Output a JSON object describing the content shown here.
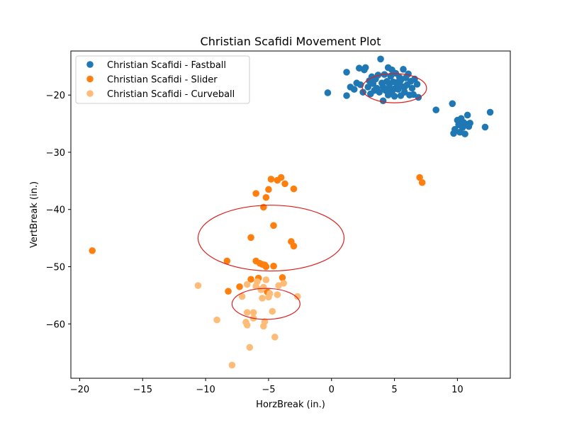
{
  "chart_data": {
    "type": "scatter",
    "title": "Christian Scafidi Movement Plot",
    "xlabel": "HorzBreak (in.)",
    "ylabel": "VertBreak (in.)",
    "xlim": [
      -20.7,
      14.2
    ],
    "ylim": [
      -69.5,
      -12.3
    ],
    "xticks": [
      -20,
      -15,
      -10,
      -5,
      0,
      5,
      10
    ],
    "xtick_labels": [
      "−20",
      "−15",
      "−10",
      "−5",
      "0",
      "5",
      "10"
    ],
    "yticks": [
      -60,
      -50,
      -40,
      -30,
      -20
    ],
    "ytick_labels": [
      "−60",
      "−50",
      "−40",
      "−30",
      "−20"
    ],
    "grid": false,
    "legend_position": "top-left",
    "series": [
      {
        "name": "Christian Scafidi - Fastball",
        "color": "#1f77b4",
        "points": [
          [
            -0.3,
            -19.6
          ],
          [
            1.2,
            -16.0
          ],
          [
            1.2,
            -20.1
          ],
          [
            1.5,
            -18.6
          ],
          [
            1.8,
            -19.0
          ],
          [
            2.0,
            -17.9
          ],
          [
            2.2,
            -15.3
          ],
          [
            2.3,
            -18.2
          ],
          [
            2.5,
            -19.5
          ],
          [
            2.6,
            -15.6
          ],
          [
            2.7,
            -15.2
          ],
          [
            2.9,
            -18.6
          ],
          [
            3.0,
            -17.5
          ],
          [
            3.1,
            -19.8
          ],
          [
            3.2,
            -16.8
          ],
          [
            3.3,
            -18.0
          ],
          [
            3.4,
            -19.2
          ],
          [
            3.5,
            -17.2
          ],
          [
            3.6,
            -18.8
          ],
          [
            3.7,
            -16.5
          ],
          [
            3.8,
            -19.5
          ],
          [
            3.9,
            -13.7
          ],
          [
            4.0,
            -17.9
          ],
          [
            4.1,
            -18.6
          ],
          [
            4.1,
            -21.0
          ],
          [
            4.2,
            -16.4
          ],
          [
            4.3,
            -19.2
          ],
          [
            4.4,
            -17.6
          ],
          [
            4.5,
            -20.0
          ],
          [
            4.5,
            -15.2
          ],
          [
            4.6,
            -18.1
          ],
          [
            4.7,
            -16.7
          ],
          [
            4.8,
            -19.4
          ],
          [
            4.8,
            -15.6
          ],
          [
            4.9,
            -17.7
          ],
          [
            5.0,
            -18.9
          ],
          [
            5.0,
            -20.2
          ],
          [
            5.1,
            -16.2
          ],
          [
            5.2,
            -17.8
          ],
          [
            5.3,
            -19.0
          ],
          [
            5.3,
            -18.3
          ],
          [
            5.4,
            -16.9
          ],
          [
            5.5,
            -20.1
          ],
          [
            5.5,
            -17.4
          ],
          [
            5.6,
            -18.5
          ],
          [
            5.7,
            -15.5
          ],
          [
            5.8,
            -19.5
          ],
          [
            5.9,
            -17.0
          ],
          [
            6.0,
            -18.2
          ],
          [
            6.1,
            -16.3
          ],
          [
            6.2,
            -20.0
          ],
          [
            6.3,
            -17.6
          ],
          [
            6.4,
            -18.8
          ],
          [
            6.5,
            -19.9
          ],
          [
            6.6,
            -17.2
          ],
          [
            6.8,
            -18.1
          ],
          [
            6.9,
            -20.4
          ],
          [
            5.2,
            -18.0
          ],
          [
            4.6,
            -18.7
          ],
          [
            5.8,
            -18.6
          ],
          [
            8.3,
            -22.6
          ],
          [
            9.6,
            -21.5
          ],
          [
            9.7,
            -26.7
          ],
          [
            9.8,
            -26.0
          ],
          [
            10.0,
            -24.4
          ],
          [
            10.1,
            -25.2
          ],
          [
            10.2,
            -26.5
          ],
          [
            10.3,
            -24.1
          ],
          [
            10.4,
            -25.7
          ],
          [
            10.5,
            -24.8
          ],
          [
            10.6,
            -26.8
          ],
          [
            10.7,
            -25.1
          ],
          [
            10.8,
            -23.5
          ],
          [
            10.9,
            -25.5
          ],
          [
            11.0,
            -24.9
          ],
          [
            12.2,
            -25.6
          ],
          [
            12.6,
            -23.0
          ]
        ]
      },
      {
        "name": "Christian Scafidi - Slider",
        "color": "#ff7f0e",
        "points": [
          [
            -19.0,
            -47.2
          ],
          [
            -8.3,
            -49.0
          ],
          [
            -8.2,
            -54.3
          ],
          [
            -7.3,
            -53.5
          ],
          [
            -6.4,
            -44.9
          ],
          [
            -6.4,
            -52.2
          ],
          [
            -6.0,
            -49.0
          ],
          [
            -6.0,
            -37.2
          ],
          [
            -5.8,
            -52.0
          ],
          [
            -5.7,
            -49.4
          ],
          [
            -5.6,
            -54.0
          ],
          [
            -5.5,
            -49.6
          ],
          [
            -5.4,
            -39.6
          ],
          [
            -5.3,
            -49.7
          ],
          [
            -5.2,
            -50.0
          ],
          [
            -5.2,
            -37.9
          ],
          [
            -5.1,
            -54.4
          ],
          [
            -5.0,
            -36.5
          ],
          [
            -4.8,
            -34.7
          ],
          [
            -4.6,
            -42.8
          ],
          [
            -4.6,
            -49.9
          ],
          [
            -4.3,
            -34.9
          ],
          [
            -4.0,
            -34.4
          ],
          [
            -3.9,
            -51.9
          ],
          [
            -3.7,
            -35.5
          ],
          [
            -3.2,
            -45.6
          ],
          [
            -3.0,
            -36.4
          ],
          [
            -3.0,
            -46.4
          ],
          [
            7.0,
            -34.4
          ],
          [
            7.2,
            -35.3
          ]
        ]
      },
      {
        "name": "Christian Scafidi - Curveball",
        "color": "#ffbb78",
        "points": [
          [
            -10.6,
            -53.3
          ],
          [
            -9.1,
            -59.3
          ],
          [
            -7.9,
            -67.2
          ],
          [
            -7.1,
            -55.2
          ],
          [
            -6.8,
            -59.7
          ],
          [
            -6.7,
            -53.1
          ],
          [
            -6.7,
            -60.2
          ],
          [
            -6.5,
            -64.1
          ],
          [
            -6.2,
            -59.0
          ],
          [
            -6.2,
            -58.0
          ],
          [
            -6.0,
            -53.4
          ],
          [
            -5.9,
            -52.6
          ],
          [
            -5.6,
            -54.0
          ],
          [
            -5.5,
            -55.5
          ],
          [
            -5.4,
            -60.4
          ],
          [
            -5.3,
            -59.6
          ],
          [
            -5.2,
            -52.3
          ],
          [
            -5.0,
            -55.3
          ],
          [
            -4.9,
            -54.7
          ],
          [
            -4.7,
            -57.8
          ],
          [
            -4.5,
            -62.3
          ],
          [
            -4.3,
            -54.9
          ],
          [
            -4.2,
            -53.3
          ],
          [
            -3.8,
            -52.9
          ],
          [
            -2.7,
            -55.2
          ],
          [
            -6.7,
            -58.0
          ],
          [
            -5.4,
            -53.6
          ]
        ]
      }
    ],
    "ellipses": [
      {
        "center": [
          5.0,
          -18.8
        ],
        "width": 5.1,
        "height": 5.1,
        "color": "#dd1f1f"
      },
      {
        "center": [
          -4.8,
          -45.0
        ],
        "width": 11.6,
        "height": 11.5,
        "color": "#dd1f1f"
      },
      {
        "center": [
          -5.2,
          -56.5
        ],
        "width": 5.4,
        "height": 5.4,
        "color": "#dd1f1f"
      }
    ]
  }
}
